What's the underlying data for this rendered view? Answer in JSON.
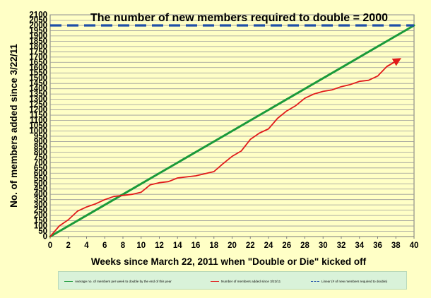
{
  "chart_data": {
    "type": "line",
    "title": "The number of new members required to double = 2000",
    "xlabel": "Weeks since March 22, 2011 when \"Double or Die\" kicked off",
    "ylabel": "No. of  members added since 3/22/11",
    "xlim": [
      0,
      40
    ],
    "ylim": [
      0,
      2100
    ],
    "x_ticks": [
      0,
      2,
      4,
      6,
      8,
      10,
      12,
      14,
      16,
      18,
      20,
      22,
      24,
      26,
      28,
      30,
      32,
      34,
      36,
      38,
      40
    ],
    "y_ticks": [
      0,
      50,
      100,
      150,
      200,
      250,
      300,
      350,
      400,
      450,
      500,
      550,
      600,
      650,
      700,
      750,
      800,
      850,
      900,
      950,
      1000,
      1050,
      1100,
      1150,
      1200,
      1250,
      1300,
      1350,
      1400,
      1450,
      1500,
      1550,
      1600,
      1650,
      1700,
      1750,
      1800,
      1850,
      1900,
      1950,
      2000,
      2050,
      2100
    ],
    "grid": true,
    "legend_position": "bottom",
    "target_value": 2000,
    "series": [
      {
        "name": "Average no. of members per week to double by the end of this year",
        "color": "#1a9a3a",
        "x": [
          0,
          40
        ],
        "y": [
          0,
          2000
        ]
      },
      {
        "name": "Number of members added since 3/22/11",
        "color": "#e11a1a",
        "x": [
          0,
          1,
          2,
          3,
          4,
          5,
          6,
          7,
          8,
          9,
          10,
          11,
          12,
          13,
          14,
          15,
          16,
          17,
          18,
          19,
          20,
          21,
          22,
          23,
          24,
          25,
          26,
          27,
          28,
          29,
          30,
          31,
          32,
          33,
          34,
          35,
          36,
          37
        ],
        "y": [
          0,
          100,
          160,
          240,
          280,
          310,
          350,
          380,
          390,
          400,
          420,
          490,
          510,
          520,
          555,
          565,
          575,
          595,
          615,
          690,
          760,
          810,
          920,
          980,
          1020,
          1120,
          1190,
          1240,
          1310,
          1350,
          1375,
          1390,
          1420,
          1440,
          1470,
          1480,
          1520,
          1610
        ]
      },
      {
        "name": "Linear (# of new members required to double)",
        "color": "#1f4fa8",
        "dashed": true,
        "x": [
          0,
          40
        ],
        "y": [
          2000,
          2000
        ]
      }
    ],
    "arrow": {
      "from": [
        37,
        1610
      ],
      "to": [
        38.2,
        1670
      ],
      "color": "#e11a1a"
    }
  }
}
